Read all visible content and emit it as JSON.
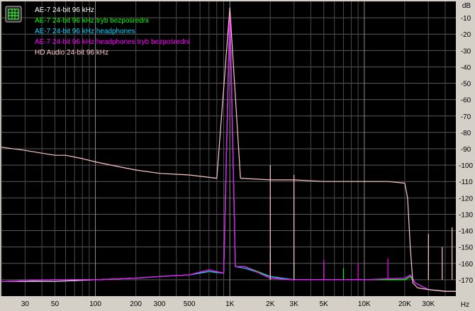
{
  "chart_data": {
    "type": "line",
    "title": "",
    "xlabel": "Hz",
    "ylabel": "dB",
    "x_scale": "log",
    "xlim": [
      20,
      48000
    ],
    "ylim": [
      -180,
      0
    ],
    "grid": true,
    "legend_position": "top-left",
    "background": "#000000",
    "y_ticks": [
      -10,
      -20,
      -30,
      -40,
      -50,
      -60,
      -70,
      -80,
      -90,
      -100,
      -110,
      -120,
      -130,
      -140,
      -150,
      -160,
      -170
    ],
    "x_ticks": [
      {
        "value": 30,
        "label": "30"
      },
      {
        "value": 50,
        "label": "50"
      },
      {
        "value": 100,
        "label": "100"
      },
      {
        "value": 200,
        "label": "200"
      },
      {
        "value": 300,
        "label": "300"
      },
      {
        "value": 500,
        "label": "500"
      },
      {
        "value": 1000,
        "label": "1K"
      },
      {
        "value": 2000,
        "label": "2K"
      },
      {
        "value": 3000,
        "label": "3K"
      },
      {
        "value": 5000,
        "label": "5K"
      },
      {
        "value": 10000,
        "label": "10K"
      },
      {
        "value": 20000,
        "label": "20K"
      },
      {
        "value": 30000,
        "label": "30K"
      }
    ],
    "series": [
      {
        "name": "AE-7 24-bit 96 kHz",
        "color": "#ffffff",
        "x": [
          20,
          50,
          100,
          200,
          300,
          500,
          700,
          900,
          1000,
          1100,
          1300,
          2000,
          3000,
          5000,
          10000,
          20000,
          22000,
          24000,
          30000,
          40000,
          48000
        ],
        "y": [
          -171,
          -171,
          -170,
          -169,
          -168,
          -167,
          -164,
          -166,
          -4,
          -162,
          -162,
          -169,
          -170,
          -170,
          -170,
          -170,
          -168,
          -172,
          -176,
          -177,
          -177
        ]
      },
      {
        "name": "AE-7 24-bit 96 kHz tryb bezpośredni",
        "color": "#00ff00",
        "x": [
          20,
          50,
          100,
          200,
          300,
          500,
          700,
          900,
          1000,
          1100,
          1300,
          2000,
          3000,
          5000,
          10000,
          20000,
          22000,
          24000,
          30000,
          40000,
          48000
        ],
        "y": [
          -171,
          -170,
          -170,
          -169,
          -168,
          -167,
          -165,
          -166,
          -4,
          -162,
          -162,
          -168,
          -170,
          -170,
          -170,
          -170,
          -168,
          -172,
          -176,
          -177,
          -177
        ]
      },
      {
        "name": "AE-7 24-bit 96 kHz headphones",
        "color": "#00d8ff",
        "x": [
          20,
          50,
          100,
          200,
          300,
          500,
          700,
          900,
          1000,
          1100,
          1300,
          2000,
          3000,
          5000,
          10000,
          20000,
          22000,
          24000,
          30000,
          40000,
          48000
        ],
        "y": [
          -171,
          -170,
          -170,
          -169,
          -168,
          -167,
          -165,
          -166,
          -4,
          -162,
          -163,
          -168,
          -170,
          -170,
          -170,
          -169,
          -167,
          -172,
          -176,
          -177,
          -177
        ]
      },
      {
        "name": "AE-7 24-bit 96 kHz headphones tryb bezpośredni",
        "color": "#ff00ff",
        "x": [
          20,
          50,
          100,
          200,
          300,
          500,
          700,
          900,
          1000,
          1100,
          1300,
          2000,
          3000,
          5000,
          10000,
          20000,
          22000,
          24000,
          30000,
          40000,
          48000
        ],
        "y": [
          -171,
          -170,
          -170,
          -169,
          -168,
          -167,
          -164,
          -166,
          -4,
          -162,
          -162,
          -169,
          -170,
          -170,
          -170,
          -169,
          -167,
          -172,
          -176,
          -177,
          -177
        ]
      },
      {
        "name": "HD Audio 24-bit 96 kHz",
        "color": "#ffc8c8",
        "x": [
          20,
          30,
          50,
          60,
          80,
          100,
          150,
          200,
          300,
          500,
          800,
          1000,
          1200,
          2000,
          3000,
          5000,
          10000,
          15000,
          20000,
          21000,
          22000,
          23000,
          25000,
          30000,
          40000,
          48000
        ],
        "y": [
          -89,
          -91,
          -94,
          -94,
          -96,
          -98,
          -101,
          -103,
          -105,
          -106,
          -108,
          -4,
          -108,
          -109,
          -109,
          -110,
          -110,
          -110,
          -111,
          -120,
          -150,
          -172,
          -175,
          -176,
          -177,
          -177
        ]
      }
    ],
    "peaks": [
      {
        "series": 1,
        "x": 2000,
        "y": -153
      },
      {
        "series": 1,
        "x": 3000,
        "y": -160
      },
      {
        "series": 1,
        "x": 5000,
        "y": -161
      },
      {
        "series": 1,
        "x": 7000,
        "y": -163
      },
      {
        "series": 3,
        "x": 2000,
        "y": -157
      },
      {
        "series": 3,
        "x": 5000,
        "y": -158
      },
      {
        "series": 3,
        "x": 9000,
        "y": -160
      },
      {
        "series": 3,
        "x": 15000,
        "y": -157
      },
      {
        "series": 4,
        "x": 2000,
        "y": -100
      },
      {
        "series": 4,
        "x": 3000,
        "y": -106
      },
      {
        "series": 4,
        "x": 30000,
        "y": -142
      },
      {
        "series": 4,
        "x": 38000,
        "y": -150
      },
      {
        "series": 4,
        "x": 45000,
        "y": -138
      }
    ]
  }
}
